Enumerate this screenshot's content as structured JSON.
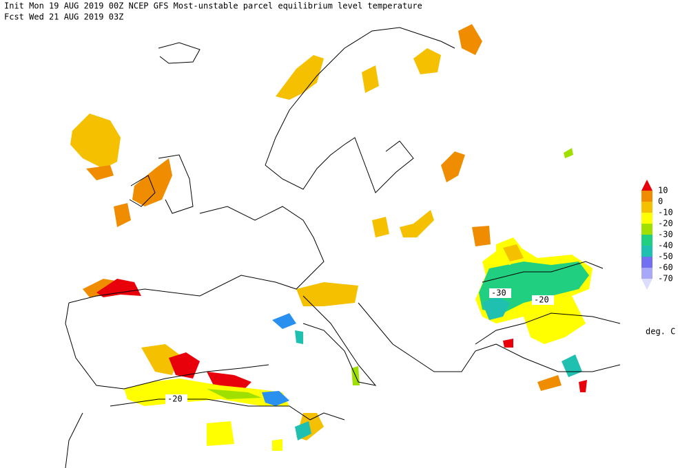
{
  "header": {
    "line1": "Init  Mon 19 AUG 2019 00Z  NCEP GFS Most-unstable parcel equilibrium level temperature",
    "line2": "Fcst Wed 21 AUG 2019 03Z"
  },
  "legend": {
    "labels": [
      "10",
      "0",
      "-10",
      "-20",
      "-30",
      "-40",
      "-50",
      "-60",
      "-70"
    ],
    "colors": [
      "#e8000b",
      "#f08c00",
      "#f5c000",
      "#ffff00",
      "#a0e000",
      "#20d080",
      "#20c0b0",
      "#7070f0",
      "#a8a8f8",
      "#dcdcfc"
    ],
    "unit": "deg. C"
  },
  "contour_labels": [
    "-30",
    "-20",
    "-20"
  ]
}
